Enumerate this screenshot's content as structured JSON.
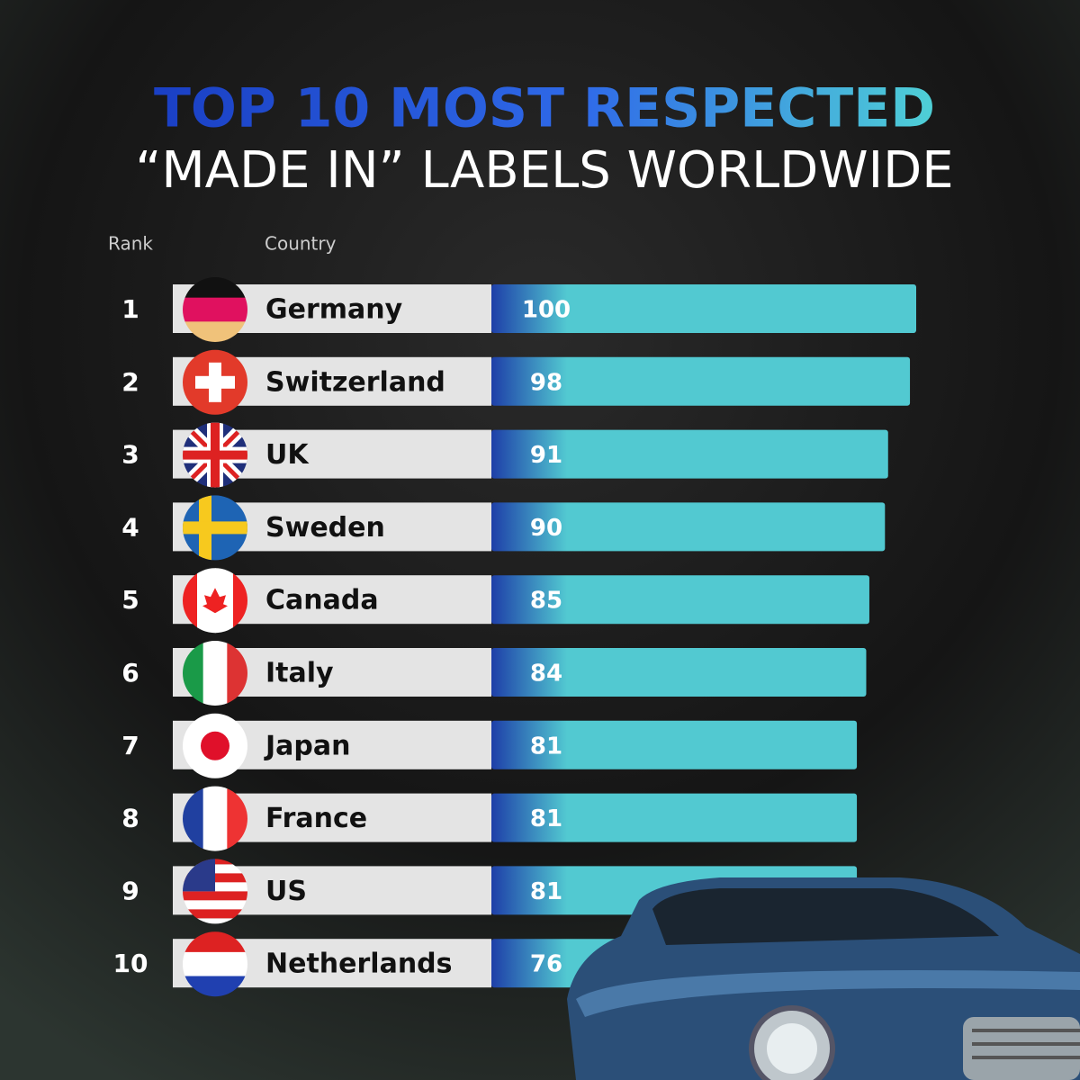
{
  "chart_data": {
    "type": "bar",
    "title": "TOP 10 MOST RESPECTED",
    "subtitle": "“MADE IN” LABELS WORLDWIDE",
    "rank_header": "Rank",
    "category_header": "Country",
    "ranks": [
      "1",
      "2",
      "3",
      "4",
      "5",
      "6",
      "7",
      "8",
      "9",
      "10"
    ],
    "categories": [
      "Germany",
      "Switzerland",
      "UK",
      "Sweden",
      "Canada",
      "Italy",
      "Japan",
      "France",
      "US",
      "Netherlands"
    ],
    "values": [
      100,
      98,
      91,
      90,
      85,
      84,
      81,
      81,
      81,
      76
    ],
    "color": "#52c9d1"
  }
}
